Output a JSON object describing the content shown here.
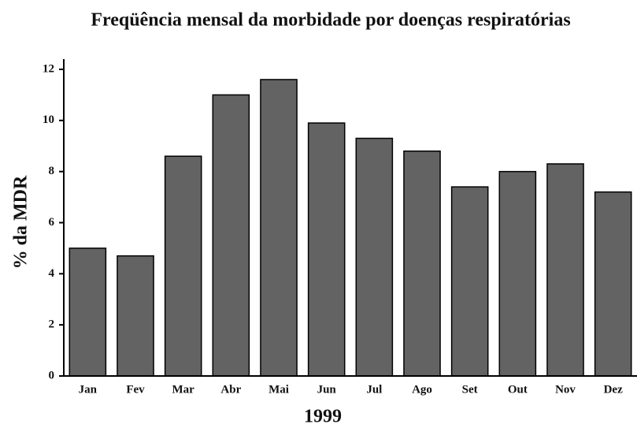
{
  "chart_data": {
    "type": "bar",
    "title": "Freqüência mensal da morbidade por doenças respiratórias",
    "categories": [
      "Jan",
      "Fev",
      "Mar",
      "Abr",
      "Mai",
      "Jun",
      "Jul",
      "Ago",
      "Set",
      "Out",
      "Nov",
      "Dez"
    ],
    "values": [
      5.0,
      4.7,
      8.6,
      11.0,
      11.6,
      9.9,
      9.3,
      8.8,
      7.4,
      8.0,
      8.3,
      7.2
    ],
    "color": "#636363",
    "x_label": "1999",
    "y_label": "% da MDR",
    "ylim": [
      0,
      12.4
    ],
    "yticks": [
      0,
      2,
      4,
      6,
      8,
      10,
      12
    ]
  }
}
